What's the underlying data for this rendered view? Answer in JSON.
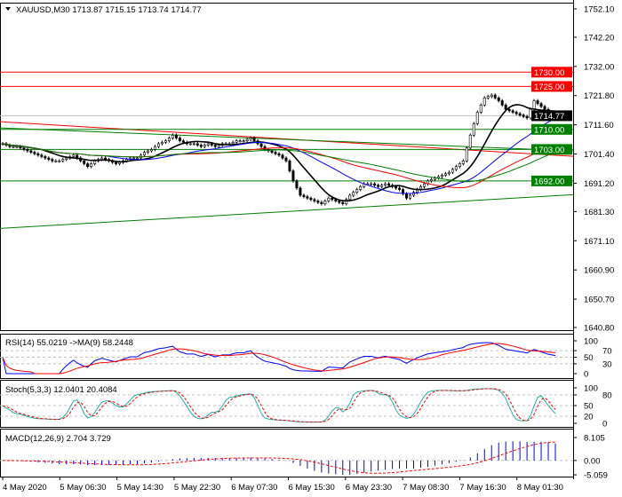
{
  "header": {
    "symbol": "XAUUSD,M30",
    "open": "1713.87",
    "high": "1715.15",
    "low": "1713.74",
    "close": "1714.77"
  },
  "chart_data": [
    {
      "type": "candlestick",
      "title": "XAUUSD,M30",
      "ylim": [
        1640.8,
        1752.1
      ],
      "y_ticks": [
        "1752.10",
        "1742.20",
        "1732.00",
        "1721.80",
        "1711.60",
        "1701.40",
        "1691.20",
        "1681.30",
        "1671.10",
        "1660.90",
        "1650.70",
        "1640.80"
      ],
      "x_ticks": [
        "4 May 2020",
        "5 May 06:30",
        "5 May 14:30",
        "5 May 22:30",
        "6 May 07:30",
        "6 May 15:30",
        "6 May 23:30",
        "7 May 08:30",
        "7 May 16:30",
        "8 May 01:30"
      ],
      "closes": [
        1705,
        1704,
        1704,
        1703,
        1702,
        1701,
        1700,
        1699,
        1699,
        1700,
        1701,
        1699,
        1697,
        1699,
        1700,
        1699,
        1698,
        1699,
        1700,
        1700,
        1702,
        1703,
        1705,
        1706,
        1708,
        1706,
        1705,
        1705,
        1704,
        1705,
        1704,
        1705,
        1705,
        1706,
        1706,
        1707,
        1705,
        1703,
        1702,
        1701,
        1699,
        1692,
        1687,
        1686,
        1685,
        1684,
        1686,
        1685,
        1684,
        1687,
        1689,
        1691,
        1691,
        1690,
        1691,
        1690,
        1689,
        1686,
        1688,
        1690,
        1692,
        1693,
        1694,
        1695,
        1697,
        1699,
        1708,
        1716,
        1721,
        1722,
        1720,
        1717,
        1716,
        1715,
        1714,
        1720,
        1718,
        1716,
        1714.77
      ],
      "levels": [
        {
          "price": 1730.0,
          "label": "1730.00",
          "color": "#ff0000"
        },
        {
          "price": 1725.0,
          "label": "1725.00",
          "color": "#ff0000"
        },
        {
          "price": 1714.77,
          "label": "1714.77",
          "color": "#000000",
          "line": "#c0c0c0"
        },
        {
          "price": 1710.0,
          "label": "1710.00",
          "color": "#008000"
        },
        {
          "price": 1703.0,
          "label": "1703.00",
          "color": "#008000"
        },
        {
          "price": 1692.0,
          "label": "1692.00",
          "color": "#008000"
        }
      ],
      "trendlines": [
        {
          "from": 1712.7,
          "to": 1700.6,
          "color": "#ff0000"
        },
        {
          "from": 1710.5,
          "to": 1702.5,
          "color": "#008000"
        },
        {
          "from": 1675.4,
          "to": 1687.2,
          "color": "#008000"
        }
      ],
      "moving_averages": [
        {
          "period": 12,
          "color": "#000000"
        },
        {
          "period": 30,
          "color": "#0000ff"
        },
        {
          "period": 50,
          "color": "#ff0000"
        },
        {
          "period": 60,
          "color": "#008000"
        }
      ]
    },
    {
      "type": "line",
      "title": "RSI(14) 55.0219  ->MA(9) 58.2448",
      "ylim": [
        0,
        100
      ],
      "y_ticks": [
        "100",
        "70",
        "50",
        "30",
        "0"
      ],
      "colors": [
        "#0000ff",
        "#ff0000"
      ]
    },
    {
      "type": "line",
      "title": "Stoch(5,3,3) 12.0401 20.4084",
      "ylim": [
        0,
        100
      ],
      "y_ticks": [
        "100",
        "80",
        "50",
        "20",
        "0"
      ],
      "colors": [
        "#20b2aa",
        "#ff0000"
      ]
    },
    {
      "type": "bar",
      "title": "MACD(12,26,9) 2.704 3.729",
      "ylim": [
        -5.059,
        8.105
      ],
      "y_ticks": [
        "8.105",
        "0.00",
        "-5.059"
      ],
      "colors": [
        "#0000ff",
        "#ff0000"
      ]
    }
  ]
}
